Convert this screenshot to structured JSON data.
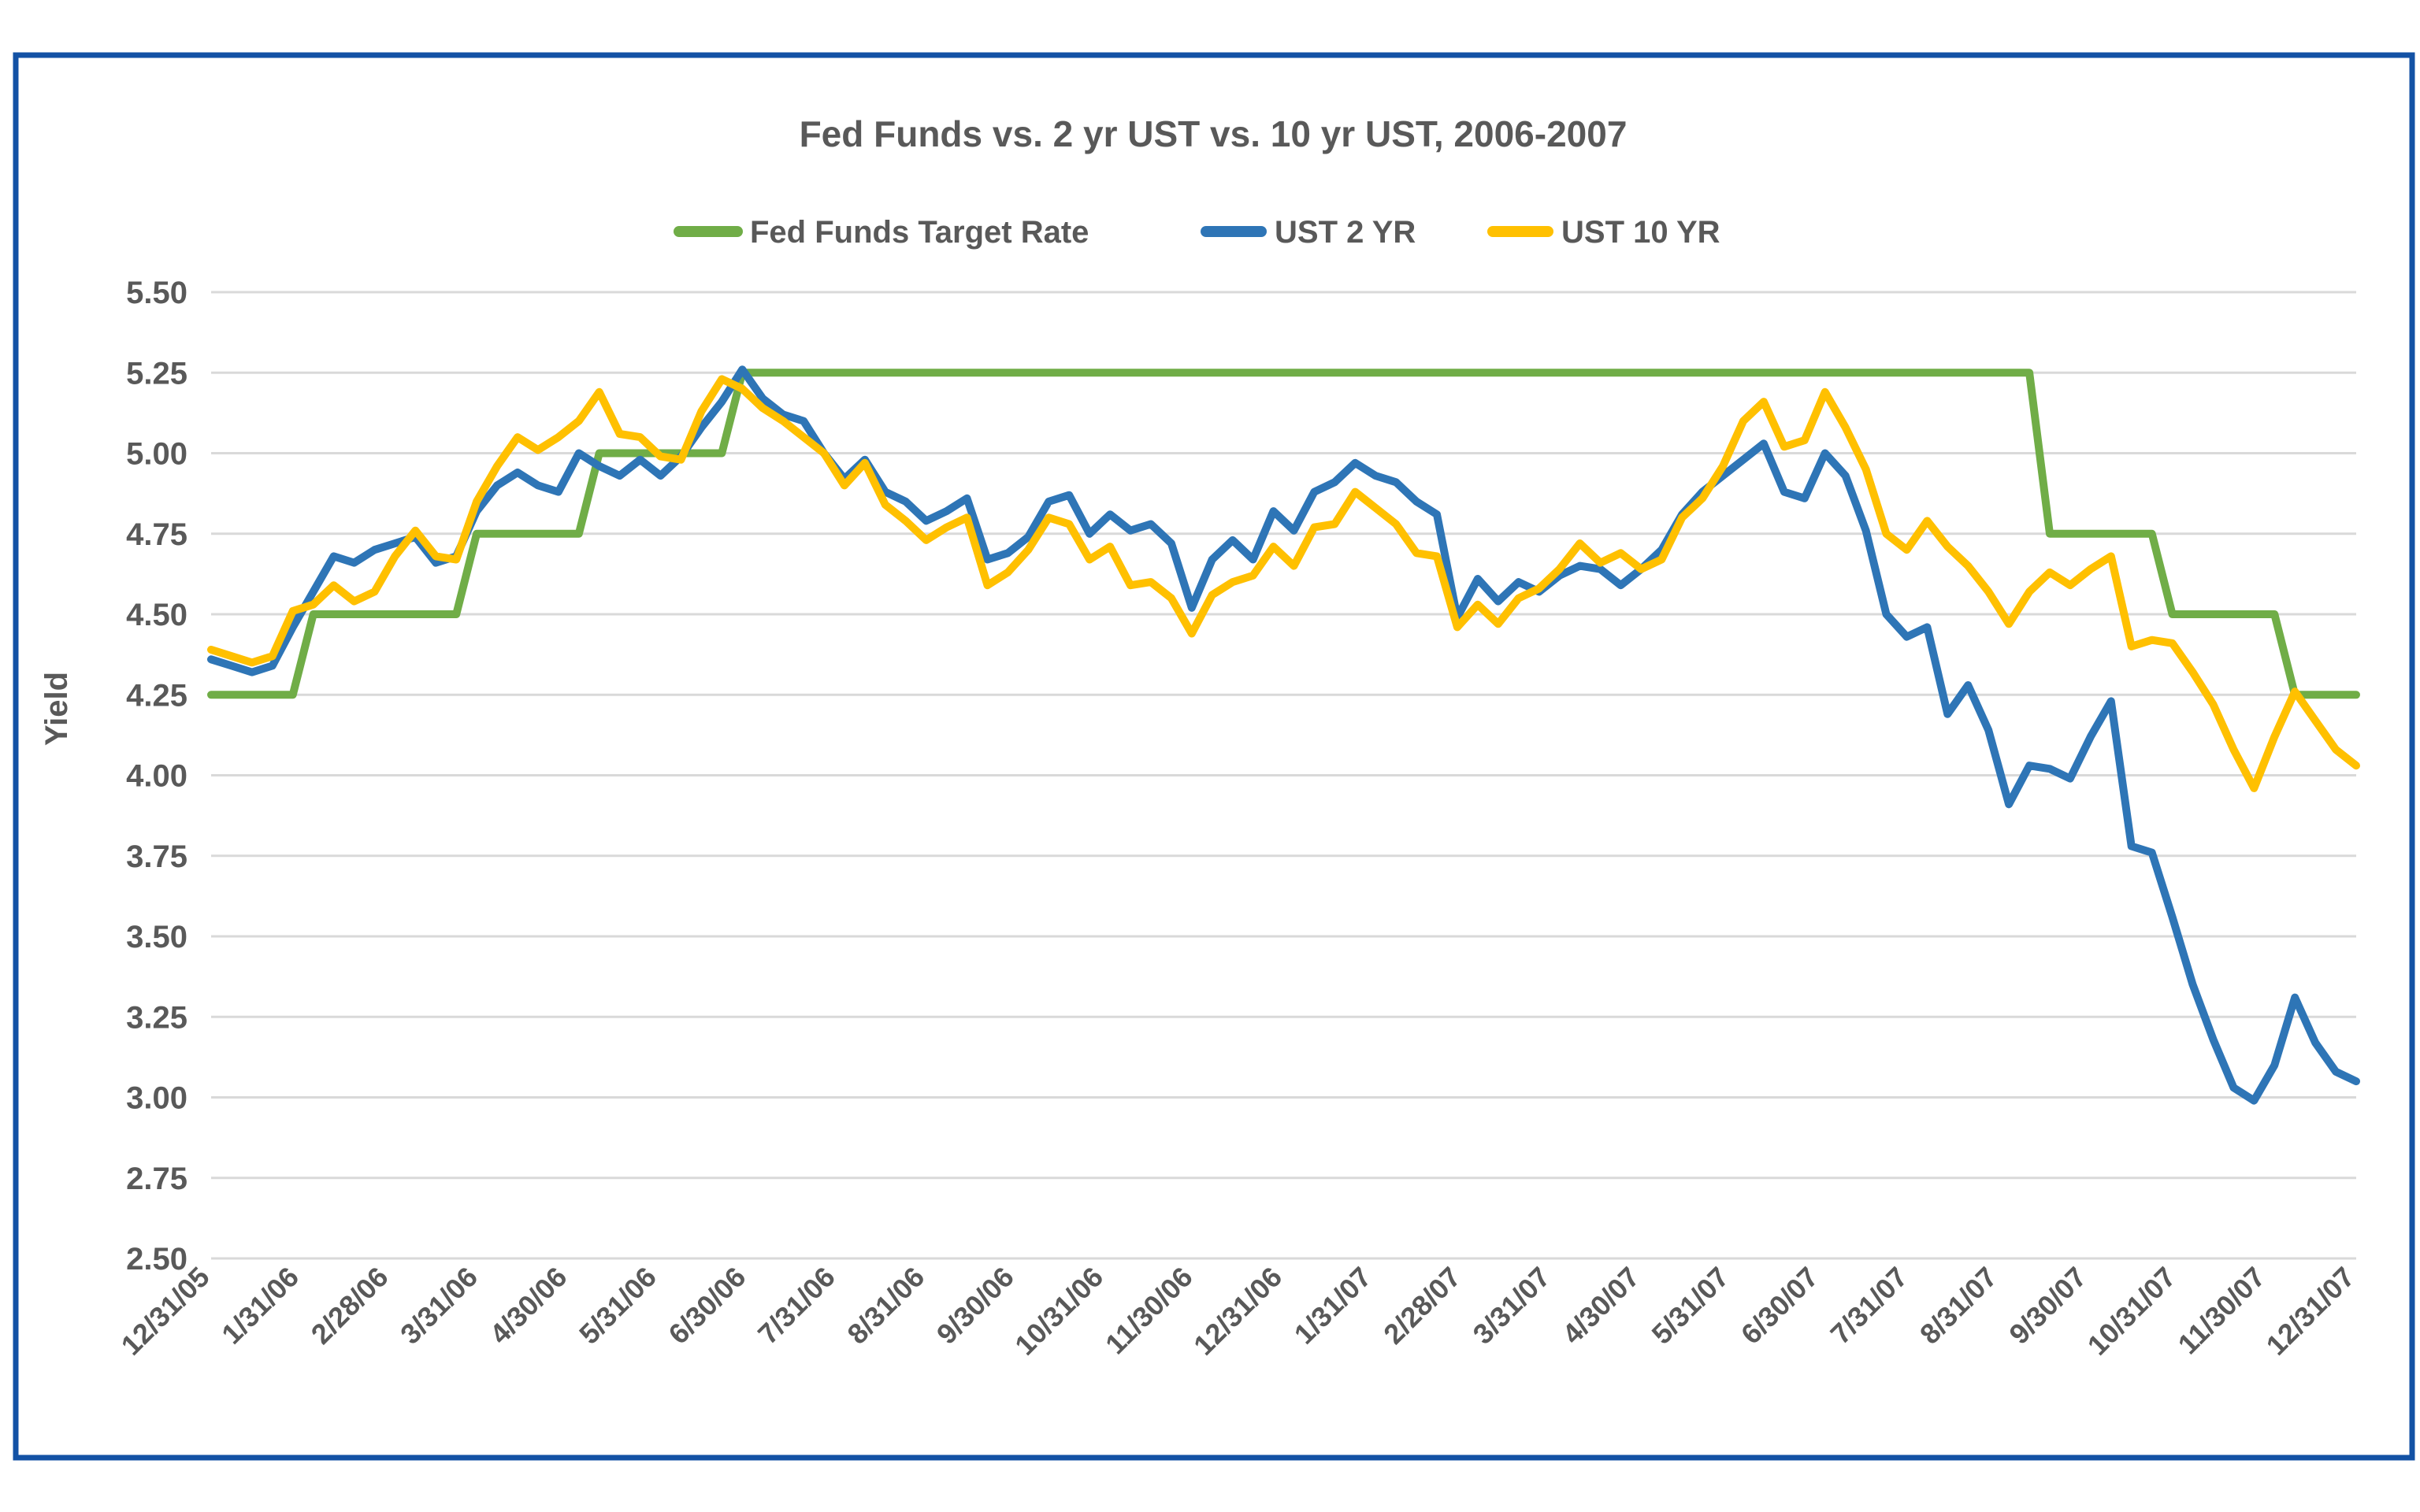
{
  "colors": {
    "text": "#595959",
    "gridline": "#D9D9D9",
    "frame_border": "#1352A5",
    "fed_funds_green": "#70AD47",
    "ust2_blue": "#2E75B6",
    "ust10_gold": "#FFC000"
  },
  "chart_data": {
    "type": "line",
    "title": "Fed Funds vs. 2 yr UST vs. 10 yr UST, 2006-2007",
    "xlabel": "",
    "ylabel": "Yield",
    "ylim": [
      2.5,
      5.5
    ],
    "ytick_step": 0.25,
    "grid": "horizontal",
    "legend_position": "top",
    "ytick_labels": [
      "5.50",
      "5.25",
      "5.00",
      "4.75",
      "4.50",
      "4.25",
      "4.00",
      "3.75",
      "3.50",
      "3.25",
      "3.00",
      "2.75",
      "2.50"
    ],
    "x_tick_labels": [
      "12/31/05",
      "1/31/06",
      "2/28/06",
      "3/31/06",
      "4/30/06",
      "5/31/06",
      "6/30/06",
      "7/31/06",
      "8/31/06",
      "9/30/06",
      "10/31/06",
      "11/30/06",
      "12/31/06",
      "1/31/07",
      "2/28/07",
      "3/31/07",
      "4/30/07",
      "5/31/07",
      "6/30/07",
      "7/31/07",
      "8/31/07",
      "9/30/07",
      "10/31/07",
      "11/30/07",
      "12/31/07"
    ],
    "x": [
      "12/31/05",
      "1/6/06",
      "1/13/06",
      "1/20/06",
      "1/27/06",
      "2/3/06",
      "2/10/06",
      "2/17/06",
      "2/24/06",
      "3/3/06",
      "3/10/06",
      "3/17/06",
      "3/24/06",
      "3/31/06",
      "4/7/06",
      "4/14/06",
      "4/21/06",
      "4/28/06",
      "5/5/06",
      "5/12/06",
      "5/19/06",
      "5/26/06",
      "6/2/06",
      "6/9/06",
      "6/16/06",
      "6/23/06",
      "6/30/06",
      "7/7/06",
      "7/14/06",
      "7/21/06",
      "7/28/06",
      "8/4/06",
      "8/11/06",
      "8/18/06",
      "8/25/06",
      "9/1/06",
      "9/8/06",
      "9/15/06",
      "9/22/06",
      "9/29/06",
      "10/6/06",
      "10/13/06",
      "10/20/06",
      "10/27/06",
      "11/3/06",
      "11/10/06",
      "11/17/06",
      "11/24/06",
      "12/1/06",
      "12/8/06",
      "12/15/06",
      "12/22/06",
      "12/29/06",
      "1/5/07",
      "1/12/07",
      "1/19/07",
      "1/26/07",
      "2/2/07",
      "2/9/07",
      "2/16/07",
      "2/23/07",
      "3/2/07",
      "3/9/07",
      "3/16/07",
      "3/23/07",
      "3/30/07",
      "4/6/07",
      "4/13/07",
      "4/20/07",
      "4/27/07",
      "5/4/07",
      "5/11/07",
      "5/18/07",
      "5/25/07",
      "6/1/07",
      "6/8/07",
      "6/15/07",
      "6/22/07",
      "6/29/07",
      "7/6/07",
      "7/13/07",
      "7/20/07",
      "7/27/07",
      "8/3/07",
      "8/10/07",
      "8/17/07",
      "8/24/07",
      "8/31/07",
      "9/7/07",
      "9/14/07",
      "9/21/07",
      "9/28/07",
      "10/5/07",
      "10/12/07",
      "10/19/07",
      "10/26/07",
      "11/2/07",
      "11/9/07",
      "11/16/07",
      "11/23/07",
      "11/30/07",
      "12/7/07",
      "12/14/07",
      "12/21/07",
      "12/28/07",
      "12/31/07"
    ],
    "series": [
      {
        "name": "Fed Funds Target Rate",
        "color": "#70AD47",
        "values": [
          4.25,
          4.25,
          4.25,
          4.25,
          4.25,
          4.5,
          4.5,
          4.5,
          4.5,
          4.5,
          4.5,
          4.5,
          4.5,
          4.75,
          4.75,
          4.75,
          4.75,
          4.75,
          4.75,
          5.0,
          5.0,
          5.0,
          5.0,
          5.0,
          5.0,
          5.0,
          5.25,
          5.25,
          5.25,
          5.25,
          5.25,
          5.25,
          5.25,
          5.25,
          5.25,
          5.25,
          5.25,
          5.25,
          5.25,
          5.25,
          5.25,
          5.25,
          5.25,
          5.25,
          5.25,
          5.25,
          5.25,
          5.25,
          5.25,
          5.25,
          5.25,
          5.25,
          5.25,
          5.25,
          5.25,
          5.25,
          5.25,
          5.25,
          5.25,
          5.25,
          5.25,
          5.25,
          5.25,
          5.25,
          5.25,
          5.25,
          5.25,
          5.25,
          5.25,
          5.25,
          5.25,
          5.25,
          5.25,
          5.25,
          5.25,
          5.25,
          5.25,
          5.25,
          5.25,
          5.25,
          5.25,
          5.25,
          5.25,
          5.25,
          5.25,
          5.25,
          5.25,
          5.25,
          5.25,
          5.25,
          4.75,
          4.75,
          4.75,
          4.75,
          4.75,
          4.75,
          4.5,
          4.5,
          4.5,
          4.5,
          4.5,
          4.5,
          4.25,
          4.25,
          4.25,
          4.25
        ]
      },
      {
        "name": "UST 2 YR",
        "color": "#2E75B6",
        "values": [
          4.36,
          4.34,
          4.32,
          4.34,
          4.46,
          4.57,
          4.68,
          4.66,
          4.7,
          4.72,
          4.74,
          4.66,
          4.68,
          4.82,
          4.9,
          4.94,
          4.9,
          4.88,
          5.0,
          4.96,
          4.93,
          4.98,
          4.93,
          4.99,
          5.08,
          5.16,
          5.26,
          5.17,
          5.12,
          5.1,
          5.0,
          4.92,
          4.98,
          4.88,
          4.85,
          4.79,
          4.82,
          4.86,
          4.67,
          4.69,
          4.74,
          4.85,
          4.87,
          4.75,
          4.81,
          4.76,
          4.78,
          4.72,
          4.52,
          4.67,
          4.73,
          4.67,
          4.82,
          4.76,
          4.88,
          4.91,
          4.97,
          4.93,
          4.91,
          4.85,
          4.81,
          4.49,
          4.61,
          4.54,
          4.6,
          4.57,
          4.62,
          4.65,
          4.64,
          4.59,
          4.64,
          4.7,
          4.81,
          4.88,
          4.93,
          4.98,
          5.03,
          4.88,
          4.86,
          5.0,
          4.93,
          4.76,
          4.5,
          4.43,
          4.46,
          4.19,
          4.28,
          4.14,
          3.91,
          4.03,
          4.02,
          3.99,
          4.12,
          4.23,
          3.78,
          3.76,
          3.56,
          3.35,
          3.18,
          3.03,
          2.99,
          3.1,
          3.31,
          3.17,
          3.08,
          3.05
        ]
      },
      {
        "name": "UST 10 YR",
        "color": "#FFC000",
        "values": [
          4.39,
          4.37,
          4.35,
          4.37,
          4.51,
          4.53,
          4.59,
          4.54,
          4.57,
          4.68,
          4.76,
          4.68,
          4.67,
          4.85,
          4.96,
          5.05,
          5.01,
          5.05,
          5.1,
          5.19,
          5.06,
          5.05,
          4.99,
          4.98,
          5.13,
          5.23,
          5.2,
          5.14,
          5.1,
          5.05,
          5.0,
          4.9,
          4.97,
          4.84,
          4.79,
          4.73,
          4.77,
          4.8,
          4.59,
          4.63,
          4.7,
          4.8,
          4.78,
          4.67,
          4.71,
          4.59,
          4.6,
          4.55,
          4.44,
          4.56,
          4.6,
          4.62,
          4.71,
          4.65,
          4.77,
          4.78,
          4.88,
          4.83,
          4.78,
          4.69,
          4.68,
          4.46,
          4.53,
          4.47,
          4.55,
          4.58,
          4.64,
          4.72,
          4.66,
          4.69,
          4.64,
          4.67,
          4.8,
          4.86,
          4.96,
          5.1,
          5.16,
          5.02,
          5.04,
          5.19,
          5.08,
          4.95,
          4.75,
          4.7,
          4.79,
          4.71,
          4.65,
          4.57,
          4.47,
          4.57,
          4.63,
          4.59,
          4.64,
          4.68,
          4.4,
          4.42,
          4.41,
          4.32,
          4.22,
          4.08,
          3.96,
          4.12,
          4.26,
          4.17,
          4.08,
          4.03
        ]
      }
    ]
  }
}
